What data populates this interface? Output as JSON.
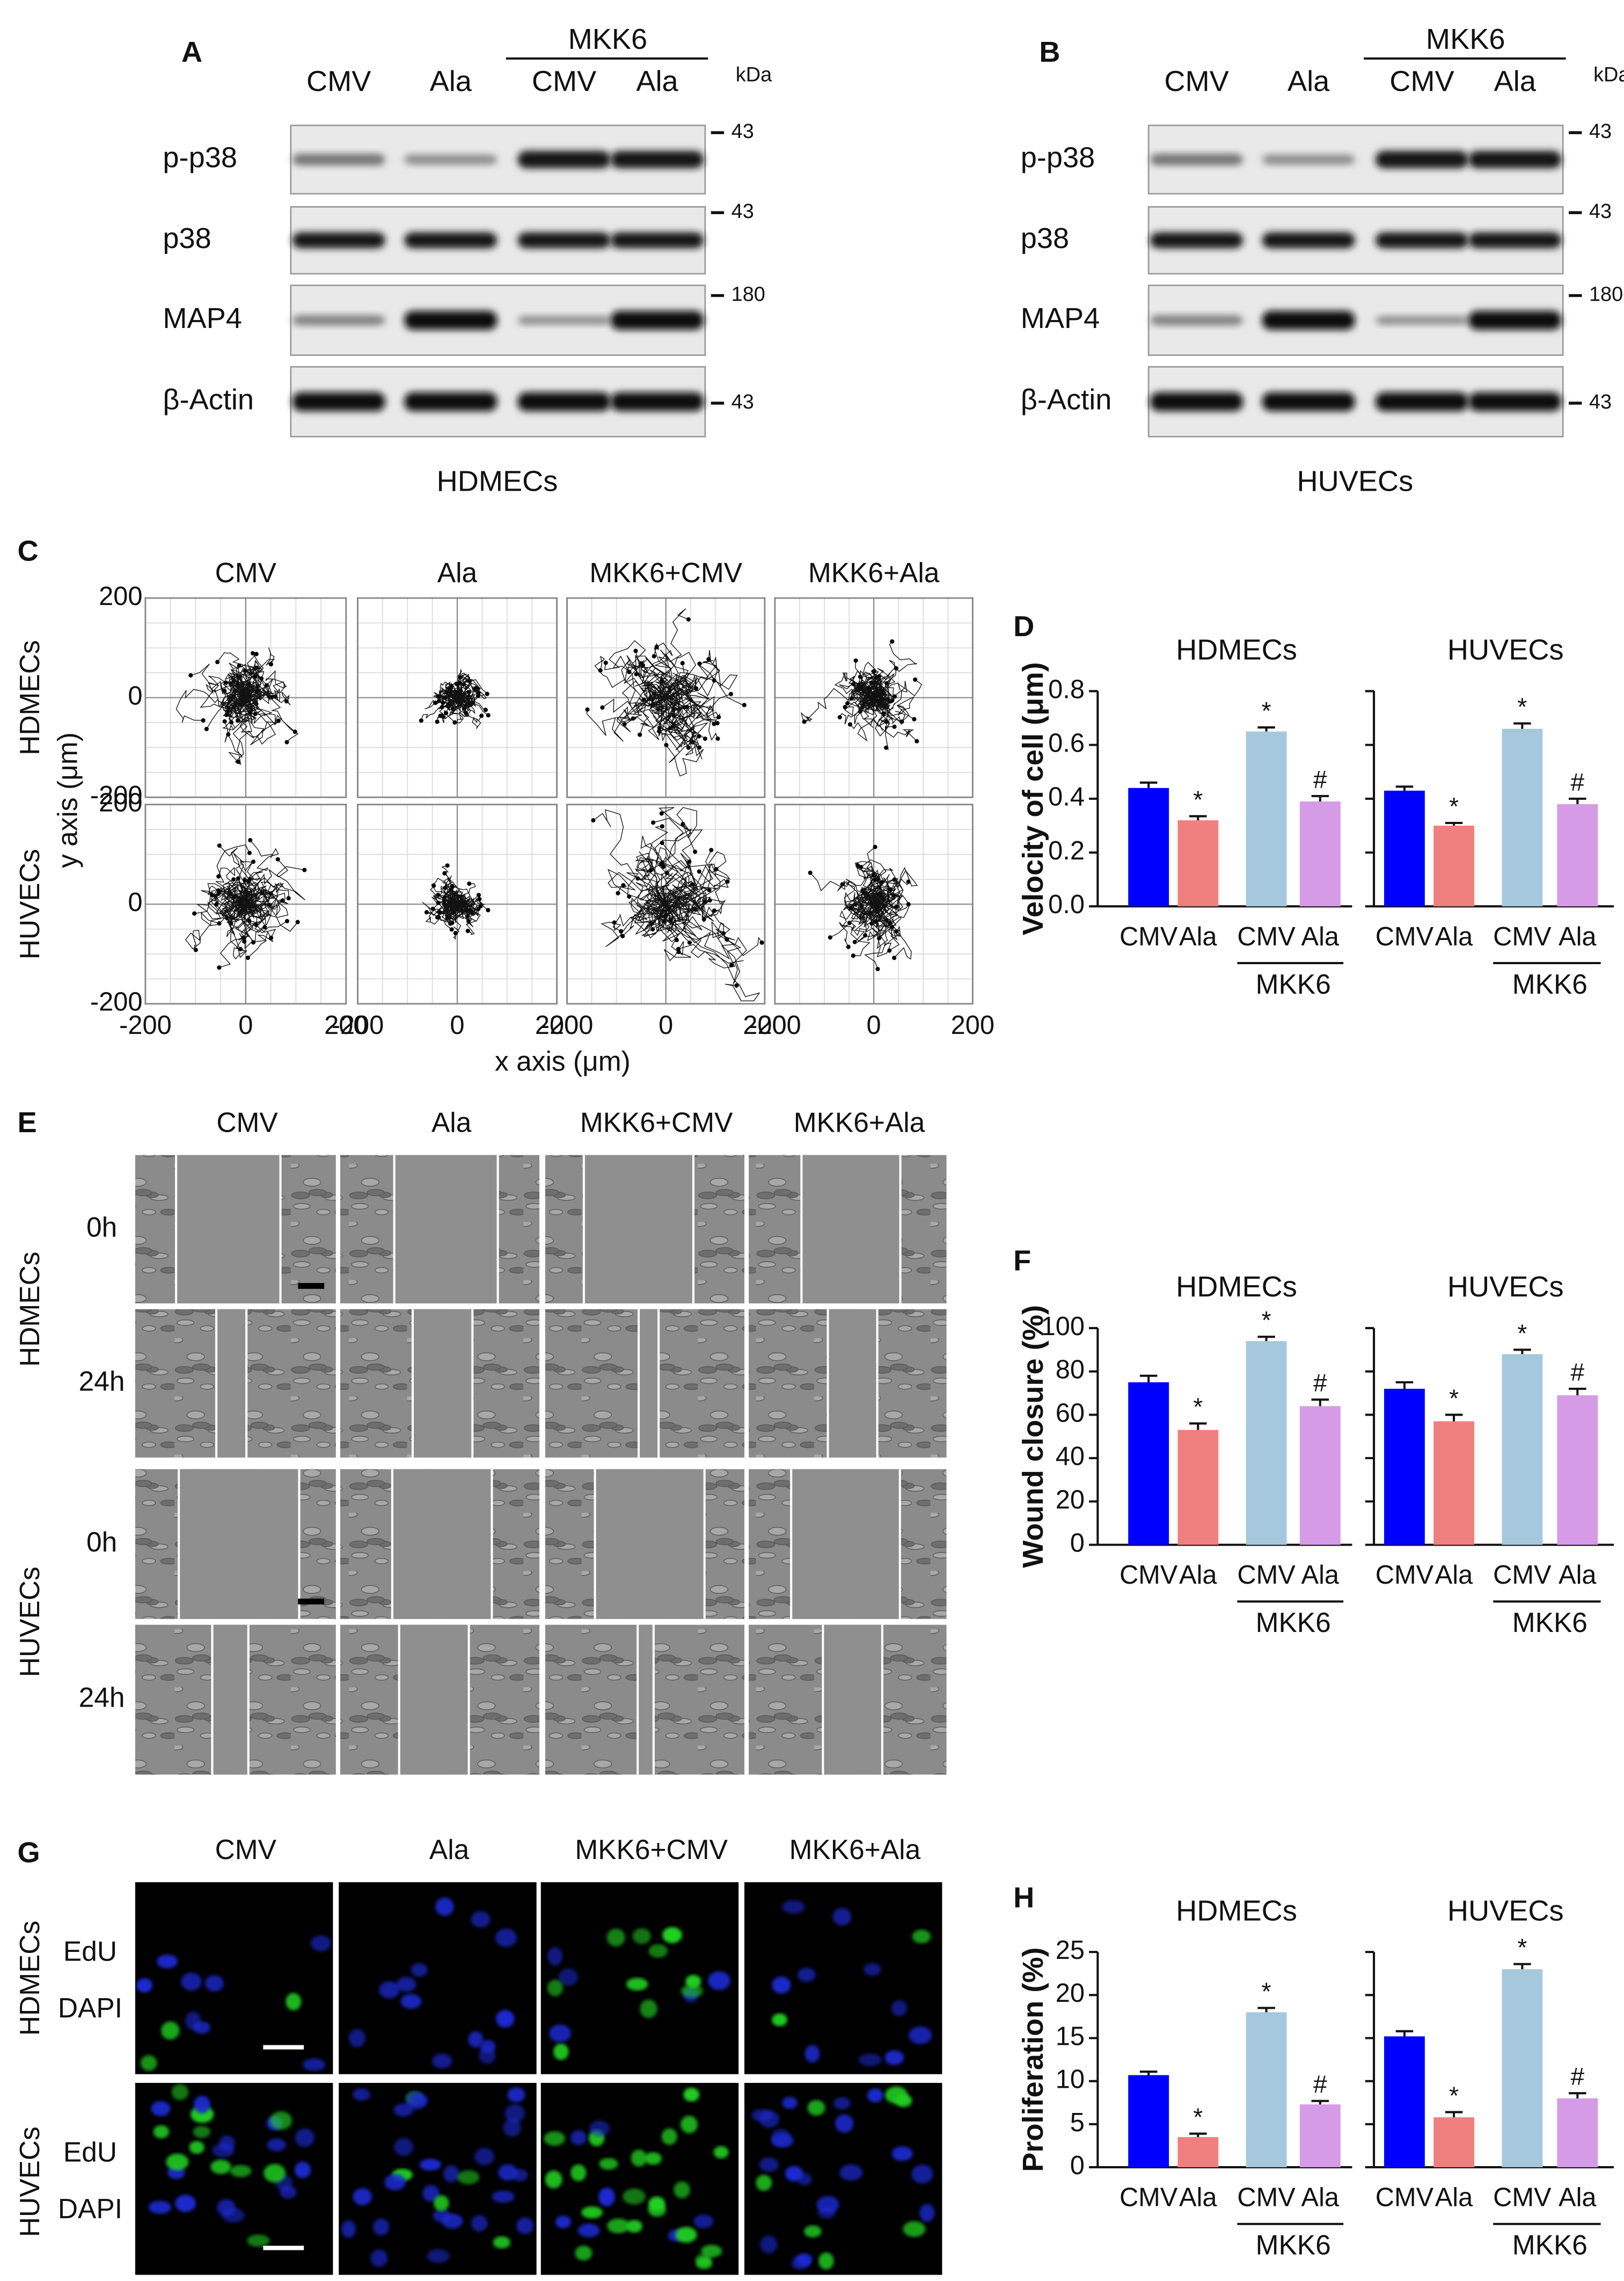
{
  "panels": {
    "A": {
      "letter": "A",
      "group": "MKK6",
      "lanes": [
        "CMV",
        "Ala",
        "CMV",
        "Ala"
      ],
      "unit": "kDa",
      "rows": [
        "p-p38",
        "p38",
        "MAP4",
        "β-Actin"
      ],
      "markers": [
        "43",
        "43",
        "180",
        "43"
      ],
      "cells": "HDMECs"
    },
    "B": {
      "letter": "B",
      "group": "MKK6",
      "lanes": [
        "CMV",
        "Ala",
        "CMV",
        "Ala"
      ],
      "unit": "kDa",
      "rows": [
        "p-p38",
        "p38",
        "MAP4",
        "β-Actin"
      ],
      "markers": [
        "43",
        "43",
        "180",
        "43"
      ],
      "cells": "HUVECs"
    },
    "C": {
      "letter": "C"
    },
    "D": {
      "letter": "D"
    },
    "E": {
      "letter": "E",
      "columns": [
        "CMV",
        "Ala",
        "MKK6+CMV",
        "MKK6+Ala"
      ],
      "rows": [
        "HDMECs",
        "HUVECs"
      ],
      "times": [
        "0h",
        "24h"
      ]
    },
    "F": {
      "letter": "F"
    },
    "G": {
      "letter": "G",
      "columns": [
        "CMV",
        "Ala",
        "MKK6+CMV",
        "MKK6+Ala"
      ],
      "rows": [
        "HDMECs",
        "HUVECs"
      ],
      "stains": [
        "EdU",
        "DAPI"
      ]
    },
    "H": {
      "letter": "H"
    }
  },
  "chart_data": [
    {
      "type": "trajectory",
      "columns": [
        "CMV",
        "Ala",
        "MKK6+CMV",
        "MKK6+Ala"
      ],
      "rows": [
        "HDMECs",
        "HUVECs"
      ],
      "xlabel": "x axis (μm)",
      "ylabel": "y axis (μm)",
      "xlim": [
        -200,
        200
      ],
      "ylim": [
        -200,
        200
      ],
      "xticks": [
        -200,
        0,
        200
      ],
      "yticks": [
        -200,
        0,
        200
      ]
    },
    {
      "type": "bar",
      "title": "HDMECs",
      "ylabel": "Velocity of cell (μm)",
      "categories": [
        "CMV",
        "Ala",
        "CMV",
        "Ala"
      ],
      "group": "MKK6",
      "values": [
        0.44,
        0.32,
        0.65,
        0.39
      ],
      "errors": [
        0.02,
        0.015,
        0.015,
        0.02
      ],
      "markers": [
        null,
        "*",
        "*",
        "#"
      ],
      "colors": [
        "#0000ff",
        "#f08080",
        "#a6c8dc",
        "#d69be6"
      ],
      "ylim": [
        0,
        0.8
      ],
      "yticks": [
        {
          "value": 0,
          "label": "0.0"
        },
        0.2,
        0.4,
        0.6,
        0.8
      ],
      "tick_labels": true
    },
    {
      "type": "bar",
      "title": "HUVECs",
      "categories": [
        "CMV",
        "Ala",
        "CMV",
        "Ala"
      ],
      "group": "MKK6",
      "values": [
        0.43,
        0.3,
        0.66,
        0.38
      ],
      "errors": [
        0.015,
        0.01,
        0.02,
        0.02
      ],
      "markers": [
        null,
        "*",
        "*",
        "#"
      ],
      "colors": [
        "#0000ff",
        "#f08080",
        "#a6c8dc",
        "#d69be6"
      ],
      "ylim": [
        0,
        0.8
      ],
      "yticks": [
        0,
        0.2,
        0.4,
        0.6,
        0.8
      ],
      "tick_labels": false
    },
    {
      "type": "bar",
      "title": "HDMECs",
      "ylabel": "Wound closure (%)",
      "categories": [
        "CMV",
        "Ala",
        "CMV",
        "Ala"
      ],
      "group": "MKK6",
      "values": [
        75,
        53,
        94,
        64
      ],
      "errors": [
        3,
        3,
        2,
        3
      ],
      "markers": [
        null,
        "*",
        "*",
        "#"
      ],
      "colors": [
        "#0000ff",
        "#f08080",
        "#a6c8dc",
        "#d69be6"
      ],
      "ylim": [
        0,
        100
      ],
      "yticks": [
        0,
        20,
        40,
        60,
        80,
        100
      ],
      "tick_labels": true
    },
    {
      "type": "bar",
      "title": "HUVECs",
      "categories": [
        "CMV",
        "Ala",
        "CMV",
        "Ala"
      ],
      "group": "MKK6",
      "values": [
        72,
        57,
        88,
        69
      ],
      "errors": [
        3,
        3,
        2,
        3
      ],
      "markers": [
        null,
        "*",
        "*",
        "#"
      ],
      "colors": [
        "#0000ff",
        "#f08080",
        "#a6c8dc",
        "#d69be6"
      ],
      "ylim": [
        0,
        100
      ],
      "yticks": [
        0,
        20,
        40,
        60,
        80,
        100
      ],
      "tick_labels": false
    },
    {
      "type": "bar",
      "title": "HDMECs",
      "ylabel": "Proliferation (%)",
      "categories": [
        "CMV",
        "Ala",
        "CMV",
        "Ala"
      ],
      "group": "MKK6",
      "values": [
        10.7,
        3.5,
        18,
        7.3
      ],
      "errors": [
        0.4,
        0.4,
        0.5,
        0.4
      ],
      "markers": [
        null,
        "*",
        "*",
        "#"
      ],
      "colors": [
        "#0000ff",
        "#f08080",
        "#a6c8dc",
        "#d69be6"
      ],
      "ylim": [
        0,
        25
      ],
      "yticks": [
        0,
        5,
        10,
        15,
        20,
        25
      ],
      "tick_labels": true
    },
    {
      "type": "bar",
      "title": "HUVECs",
      "categories": [
        "CMV",
        "Ala",
        "CMV",
        "Ala"
      ],
      "group": "MKK6",
      "values": [
        15.2,
        5.8,
        23,
        8
      ],
      "errors": [
        0.6,
        0.6,
        0.6,
        0.6
      ],
      "markers": [
        null,
        "*",
        "*",
        "#"
      ],
      "colors": [
        "#0000ff",
        "#f08080",
        "#a6c8dc",
        "#d69be6"
      ],
      "ylim": [
        0,
        25
      ],
      "yticks": [
        0,
        5,
        10,
        15,
        20,
        25
      ],
      "tick_labels": false
    }
  ]
}
